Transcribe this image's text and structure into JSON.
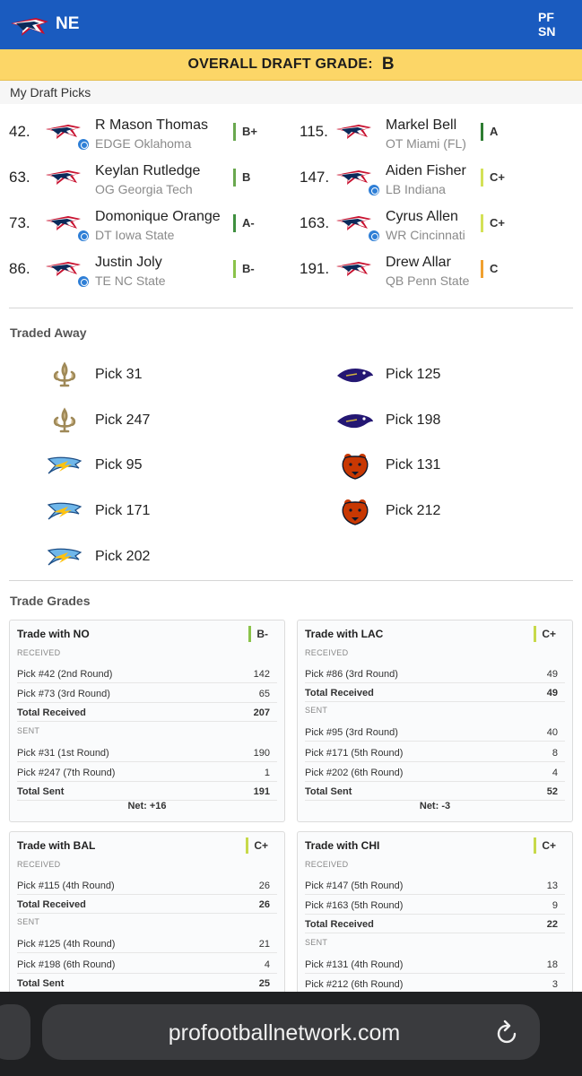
{
  "header": {
    "team_abbr": "NE",
    "brand_lines": [
      "PF",
      "SN"
    ]
  },
  "overall": {
    "label": "OVERALL DRAFT GRADE:",
    "grade": "B"
  },
  "sections": {
    "my_picks": "My Draft Picks",
    "traded_away": "Traded Away",
    "trade_grades": "Trade Grades"
  },
  "picks": [
    {
      "num": "42.",
      "name": "R Mason Thomas",
      "pos": "EDGE Oklahoma",
      "grade": "B+",
      "grade_color": "#6aa84f",
      "badge": true
    },
    {
      "num": "63.",
      "name": "Keylan Rutledge",
      "pos": "OG Georgia Tech",
      "grade": "B",
      "grade_color": "#6aa84f",
      "badge": false
    },
    {
      "num": "73.",
      "name": "Domonique Orange",
      "pos": "DT Iowa State",
      "grade": "A-",
      "grade_color": "#3f8f3f",
      "badge": true
    },
    {
      "num": "86.",
      "name": "Justin Joly",
      "pos": "TE NC State",
      "grade": "B-",
      "grade_color": "#8bc34a",
      "badge": true
    },
    {
      "num": "115.",
      "name": "Markel Bell",
      "pos": "OT Miami (FL)",
      "grade": "A",
      "grade_color": "#2e7d32",
      "badge": false
    },
    {
      "num": "147.",
      "name": "Aiden Fisher",
      "pos": "LB Indiana",
      "grade": "C+",
      "grade_color": "#d4e157",
      "badge": true
    },
    {
      "num": "163.",
      "name": "Cyrus Allen",
      "pos": "WR Cincinnati",
      "grade": "C+",
      "grade_color": "#d4e157",
      "badge": true
    },
    {
      "num": "191.",
      "name": "Drew Allar",
      "pos": "QB Penn State",
      "grade": "C",
      "grade_color": "#f0a030",
      "badge": false
    }
  ],
  "traded": [
    {
      "label": "Pick 31",
      "team": "saints"
    },
    {
      "label": "Pick 247",
      "team": "saints"
    },
    {
      "label": "Pick 95",
      "team": "chargers"
    },
    {
      "label": "Pick 171",
      "team": "chargers"
    },
    {
      "label": "Pick 202",
      "team": "chargers"
    },
    {
      "label": "Pick 125",
      "team": "ravens"
    },
    {
      "label": "Pick 198",
      "team": "ravens"
    },
    {
      "label": "Pick 131",
      "team": "bears"
    },
    {
      "label": "Pick 212",
      "team": "bears"
    }
  ],
  "trades": {
    "no": {
      "title": "Trade with NO",
      "grade": "B-",
      "grade_color": "#8bc34a",
      "received_label": "RECEIVED",
      "received": [
        {
          "label": "Pick #42 (2nd Round)",
          "value": "142"
        },
        {
          "label": "Pick #73 (3rd Round)",
          "value": "65"
        }
      ],
      "total_received": {
        "label": "Total Received",
        "value": "207"
      },
      "sent_label": "SENT",
      "sent": [
        {
          "label": "Pick #31 (1st Round)",
          "value": "190"
        },
        {
          "label": "Pick #247 (7th Round)",
          "value": "1"
        }
      ],
      "total_sent": {
        "label": "Total Sent",
        "value": "191"
      },
      "net": "Net: +16"
    },
    "lac": {
      "title": "Trade with LAC",
      "grade": "C+",
      "grade_color": "#d4e157",
      "received_label": "RECEIVED",
      "received": [
        {
          "label": "Pick #86 (3rd Round)",
          "value": "49"
        }
      ],
      "total_received": {
        "label": "Total Received",
        "value": "49"
      },
      "sent_label": "SENT",
      "sent": [
        {
          "label": "Pick #95 (3rd Round)",
          "value": "40"
        },
        {
          "label": "Pick #171 (5th Round)",
          "value": "8"
        },
        {
          "label": "Pick #202 (6th Round)",
          "value": "4"
        }
      ],
      "total_sent": {
        "label": "Total Sent",
        "value": "52"
      },
      "net": "Net: -3"
    },
    "bal": {
      "title": "Trade with BAL",
      "grade": "C+",
      "grade_color": "#d4e157",
      "received_label": "RECEIVED",
      "received": [
        {
          "label": "Pick #115 (4th Round)",
          "value": "26"
        }
      ],
      "total_received": {
        "label": "Total Received",
        "value": "26"
      },
      "sent_label": "SENT",
      "sent": [
        {
          "label": "Pick #125 (4th Round)",
          "value": "21"
        },
        {
          "label": "Pick #198 (6th Round)",
          "value": "4"
        }
      ],
      "total_sent": {
        "label": "Total Sent",
        "value": "25"
      }
    },
    "chi": {
      "title": "Trade with CHI",
      "grade": "C+",
      "grade_color": "#d4e157",
      "received_label": "RECEIVED",
      "received": [
        {
          "label": "Pick #147 (5th Round)",
          "value": "13"
        },
        {
          "label": "Pick #163 (5th Round)",
          "value": "9"
        }
      ],
      "total_received": {
        "label": "Total Received",
        "value": "22"
      },
      "sent_label": "SENT",
      "sent": [
        {
          "label": "Pick #131 (4th Round)",
          "value": "18"
        },
        {
          "label": "Pick #212 (6th Round)",
          "value": "3"
        }
      ]
    }
  },
  "browser": {
    "url": "profootballnetwork.com"
  }
}
